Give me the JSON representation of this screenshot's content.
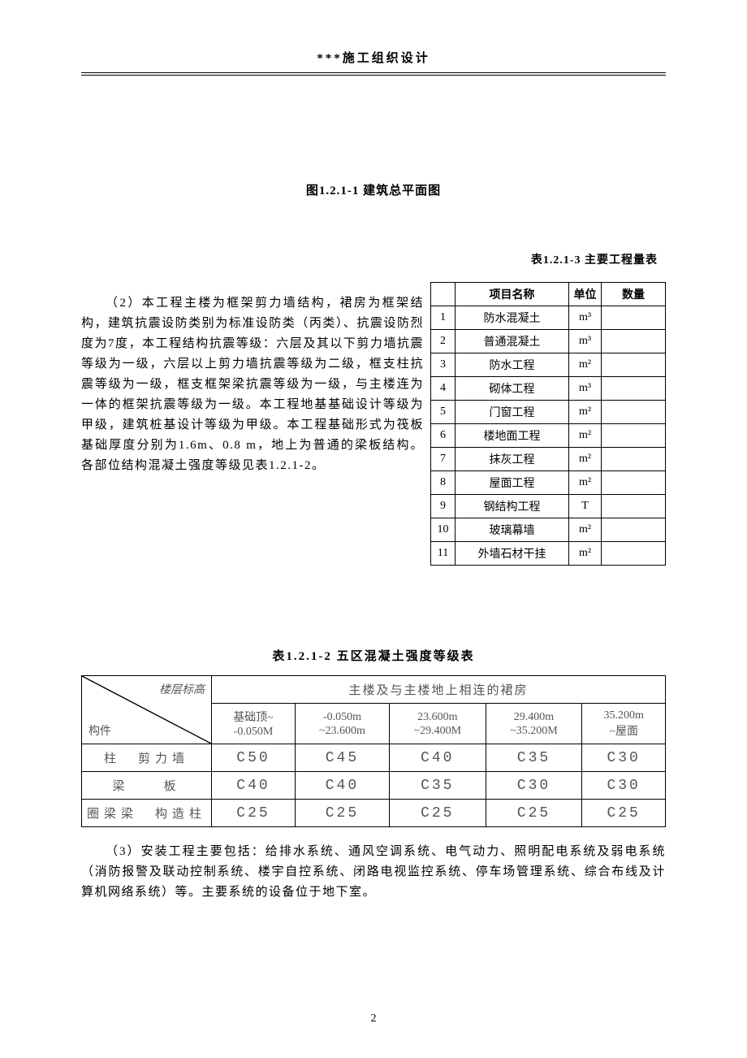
{
  "header": "***施工组织设计",
  "figure_caption": "图1.2.1-1 建筑总平面图",
  "table1_caption": "表1.2.1-3 主要工程量表",
  "body_para2": "（2）本工程主楼为框架剪力墙结构，裙房为框架结构，建筑抗震设防类别为标准设防类（丙类）、抗震设防烈度为7度，本工程结构抗震等级：六层及其以下剪力墙抗震等级为一级，六层以上剪力墙抗震等级为二级，框支柱抗震等级为一级，框支框架梁抗震等级为一级，与主楼连为一体的框架抗震等级为一级。本工程地基基础设计等级为甲级，建筑桩基设计等级为甲级。本工程基础形式为筏板基础厚度分别为1.6m、0.8 m，地上为普通的梁板结构。各部位结构混凝土强度等级见表1.2.1-2。",
  "table1": {
    "headers": [
      "",
      "项目名称",
      "单位",
      "数量"
    ],
    "rows": [
      [
        "1",
        "防水混凝土",
        "m³",
        ""
      ],
      [
        "2",
        "普通混凝土",
        "m³",
        ""
      ],
      [
        "3",
        "防水工程",
        "m²",
        ""
      ],
      [
        "4",
        "砌体工程",
        "m³",
        ""
      ],
      [
        "5",
        "门窗工程",
        "m²",
        ""
      ],
      [
        "6",
        "楼地面工程",
        "m²",
        ""
      ],
      [
        "7",
        "抹灰工程",
        "m²",
        ""
      ],
      [
        "8",
        "屋面工程",
        "m²",
        ""
      ],
      [
        "9",
        "钢结构工程",
        "T",
        ""
      ],
      [
        "10",
        "玻璃幕墙",
        "m²",
        ""
      ],
      [
        "11",
        "外墙石材干挂",
        "m²",
        ""
      ]
    ]
  },
  "table2_caption": "表1.2.1-2 五区混凝土强度等级表",
  "table2": {
    "merged_header": "主楼及与主楼地上相连的裙房",
    "diag_top": "楼层标高",
    "diag_bottom": "构件",
    "col_headers": [
      {
        "line1": "基础顶~",
        "line2": "-0.050M"
      },
      {
        "line1": "-0.050m",
        "line2": "~23.600m"
      },
      {
        "line1": "23.600m",
        "line2": "~29.400M"
      },
      {
        "line1": "29.400m",
        "line2": "~35.200M"
      },
      {
        "line1": "35.200m",
        "line2": "~屋面"
      }
    ],
    "rows": [
      {
        "label": "柱　剪力墙",
        "values": [
          "C50",
          "C45",
          "C40",
          "C35",
          "C30"
        ]
      },
      {
        "label": "梁　　板",
        "values": [
          "C40",
          "C40",
          "C35",
          "C30",
          "C30"
        ]
      },
      {
        "label": "圈梁梁　构造柱",
        "values": [
          "C25",
          "C25",
          "C25",
          "C25",
          "C25"
        ]
      }
    ]
  },
  "body_para3": "（3）安装工程主要包括：给排水系统、通风空调系统、电气动力、照明配电系统及弱电系统（消防报警及联动控制系统、楼宇自控系统、闭路电视监控系统、停车场管理系统、综合布线及计算机网络系统）等。主要系统的设备位于地下室。",
  "page_number": "2"
}
